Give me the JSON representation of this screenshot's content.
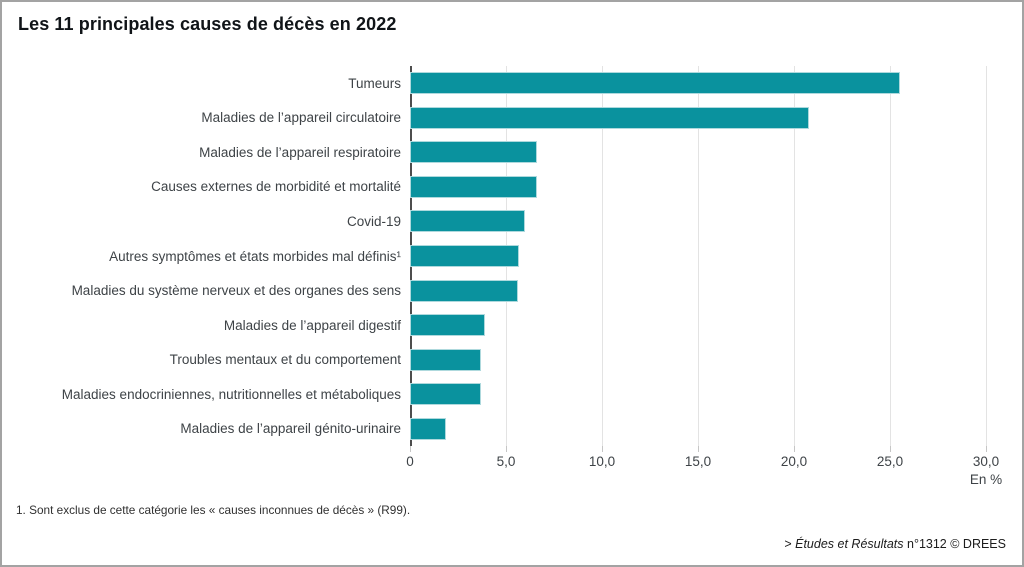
{
  "title": "Les 11 principales causes de décès en 2022",
  "chart_data": {
    "type": "bar",
    "orientation": "horizontal",
    "title": "Les 11 principales causes de décès en 2022",
    "categories": [
      "Tumeurs",
      "Maladies de l’appareil circulatoire",
      "Maladies de l’appareil respiratoire",
      "Causes externes de morbidité et mortalité",
      "Covid-19",
      "Autres symptômes et états morbides mal définis¹",
      "Maladies du système nerveux et des organes des sens",
      "Maladies de l’appareil digestif",
      "Troubles mentaux et du comportement",
      "Maladies endocriniennes, nutritionnelles et métaboliques",
      "Maladies de l’appareil génito-urinaire"
    ],
    "values": [
      25.5,
      20.8,
      6.6,
      6.6,
      6.0,
      5.7,
      5.6,
      3.9,
      3.7,
      3.7,
      1.9
    ],
    "xlabel": "En %",
    "ylabel": "",
    "xlim": [
      0,
      30
    ],
    "x_ticks": [
      "0",
      "5,0",
      "10,0",
      "15,0",
      "20,0",
      "25,0",
      "30,0"
    ],
    "grid": true,
    "legend": "none",
    "bar_color": "#0a929e"
  },
  "axis": {
    "unit_label": "En %"
  },
  "footnote": "1. Sont exclus de cette catégorie les « causes inconnues de décès » (R99).",
  "source": {
    "prefix": "> ",
    "title_italic": "Études et Résultats",
    "suffix": " n°1312 © DREES"
  }
}
